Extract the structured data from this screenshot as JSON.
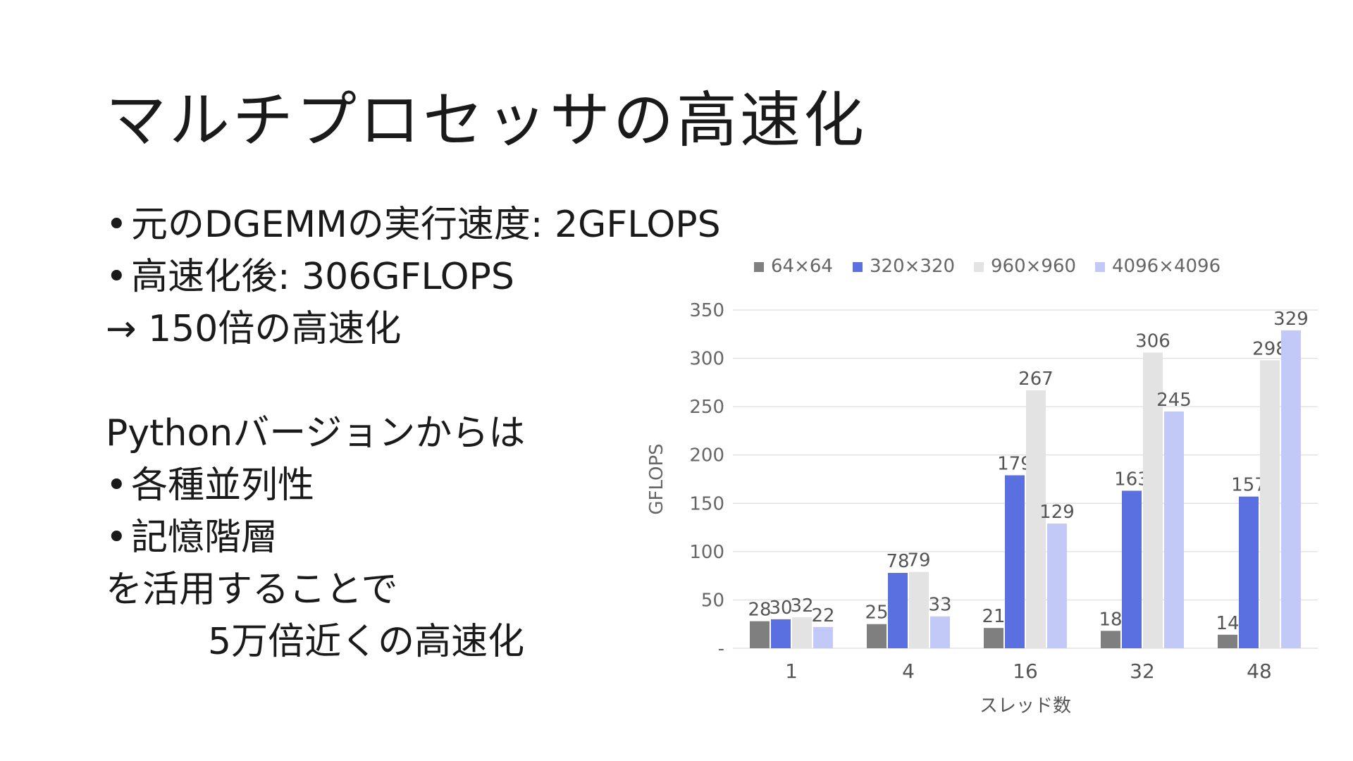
{
  "slide": {
    "title": "マルチプロセッサの高速化",
    "lines": [
      {
        "text": "元のDGEMMの実行速度: 2GFLOPS",
        "bullet": true
      },
      {
        "text": "高速化後: 306GFLOPS",
        "bullet": true
      },
      {
        "text": "→ 150倍の高速化",
        "bullet": false
      },
      {
        "text": "",
        "bullet": false
      },
      {
        "text": "Pythonバージョンからは",
        "bullet": false
      },
      {
        "text": "各種並列性",
        "bullet": true
      },
      {
        "text": "記憶階層",
        "bullet": true
      },
      {
        "text": "を活用することで",
        "bullet": false
      },
      {
        "text": "5万倍近くの高速化",
        "bullet": false,
        "indent": true
      }
    ]
  },
  "chart_data": {
    "type": "bar",
    "title": "",
    "xlabel": "スレッド数",
    "ylabel": "GFLOPS",
    "ylim": [
      0,
      350
    ],
    "yticks": [
      0,
      50,
      100,
      150,
      200,
      250,
      300,
      350
    ],
    "ytick_labels": [
      "-",
      "50",
      "100",
      "150",
      "200",
      "250",
      "300",
      "350"
    ],
    "categories": [
      "1",
      "4",
      "16",
      "32",
      "48"
    ],
    "series": [
      {
        "name": "64×64",
        "color": "#7f7f7f",
        "values": [
          28,
          25,
          21,
          18,
          14
        ]
      },
      {
        "name": "320×320",
        "color": "#5a6fe0",
        "values": [
          30,
          78,
          179,
          163,
          157
        ]
      },
      {
        "name": "960×960",
        "color": "#e3e3e3",
        "values": [
          32,
          79,
          267,
          306,
          298
        ]
      },
      {
        "name": "4096×4096",
        "color": "#c3c9f6",
        "values": [
          22,
          33,
          129,
          245,
          329
        ]
      }
    ],
    "grid": true,
    "legend_position": "top"
  }
}
